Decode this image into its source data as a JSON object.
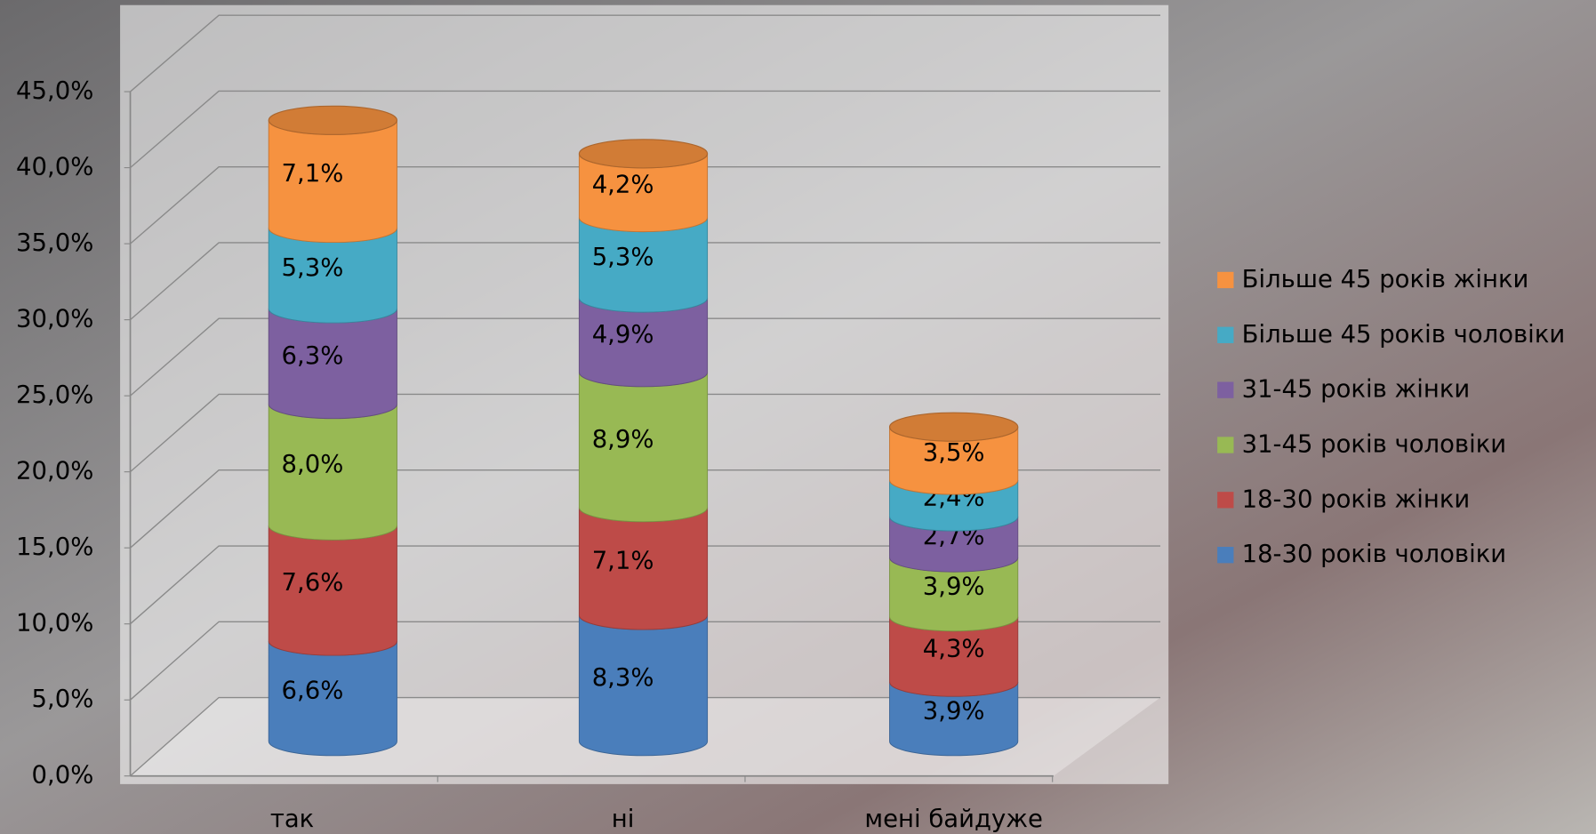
{
  "chart_data": {
    "type": "bar3d_stacked",
    "categories": [
      "так",
      "ні",
      "мені байдуже"
    ],
    "series": [
      {
        "name": "18-30 років чоловіки",
        "color": "#4a7ebb",
        "values": [
          6.6,
          8.3,
          3.9
        ],
        "value_labels": [
          "6,6%",
          "8,3%",
          "3,9%"
        ]
      },
      {
        "name": "18-30 років жінки",
        "color": "#be4b48",
        "values": [
          7.6,
          7.1,
          4.3
        ],
        "value_labels": [
          "7,6%",
          "7,1%",
          "4,3%"
        ]
      },
      {
        "name": "31-45 років чоловіки",
        "color": "#98b954",
        "values": [
          8.0,
          8.9,
          3.9
        ],
        "value_labels": [
          "8,0%",
          "8,9%",
          "3,9%"
        ]
      },
      {
        "name": "31-45 років жінки",
        "color": "#7d60a0",
        "values": [
          6.3,
          4.9,
          2.7
        ],
        "value_labels": [
          "6,3%",
          "4,9%",
          "2,7%"
        ]
      },
      {
        "name": "Більше 45 років чоловіки",
        "color": "#46aac5",
        "values": [
          5.3,
          5.3,
          2.4
        ],
        "value_labels": [
          "5,3%",
          "5,3%",
          "2,4%"
        ]
      },
      {
        "name": "Більше 45 років жінки",
        "color": "#f69240",
        "values": [
          7.1,
          4.2,
          3.5
        ],
        "value_labels": [
          "7,1%",
          "4,2%",
          "3,5%"
        ]
      }
    ],
    "ylim": [
      0,
      45
    ],
    "yticks": [
      {
        "value": 0,
        "label": "0,0%"
      },
      {
        "value": 5,
        "label": "5,0%"
      },
      {
        "value": 10,
        "label": "10,0%"
      },
      {
        "value": 15,
        "label": "15,0%"
      },
      {
        "value": 20,
        "label": "20,0%"
      },
      {
        "value": 25,
        "label": "25,0%"
      },
      {
        "value": 30,
        "label": "30,0%"
      },
      {
        "value": 35,
        "label": "35,0%"
      },
      {
        "value": 40,
        "label": "40,0%"
      },
      {
        "value": 45,
        "label": "45,0%"
      }
    ],
    "grid": true,
    "legend": "right"
  }
}
